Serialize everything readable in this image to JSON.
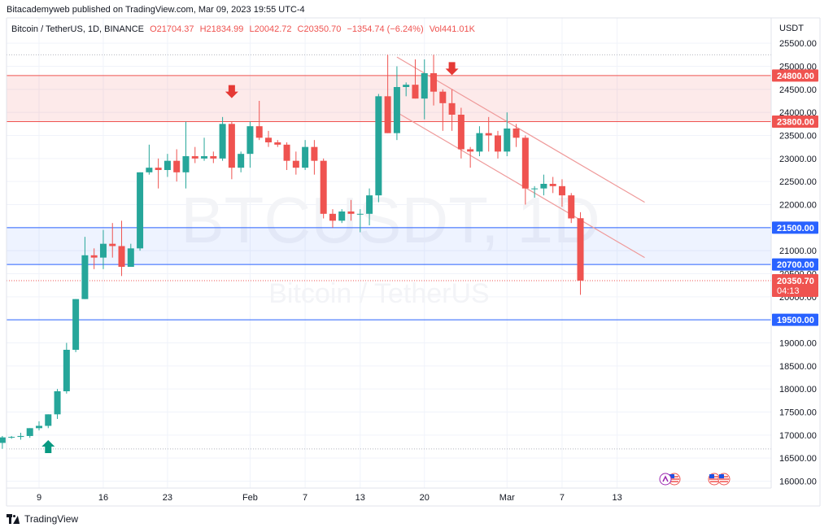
{
  "header": {
    "caption": "Bitacademyweb published on TradingView.com, Mar 09, 2023 19:55 UTC-4",
    "symbol": "Bitcoin / TetherUS, 1D, BINANCE",
    "open": "O21704.37",
    "high": "H21834.99",
    "low": "L20042.72",
    "close": "C20350.70",
    "change": "−1354.74 (−6.24%)",
    "volume": "Vol441.01K"
  },
  "watermark": {
    "symbol": "BTCUSDT, 1D",
    "name": "Bitcoin / TetherUS"
  },
  "footer": {
    "brand": "TradingView"
  },
  "colors": {
    "up": "#26a69a",
    "down": "#ef5350",
    "resistance": "#ef5350",
    "support": "#2962ff",
    "channel": "#ef9a9a"
  },
  "chart_data": {
    "type": "candlestick",
    "currency": "USDT",
    "ylim": [
      15850,
      26050
    ],
    "y_ticks": [
      16000,
      16500,
      17000,
      17500,
      18000,
      18500,
      19000,
      19500,
      20000,
      20500,
      21000,
      21500,
      22000,
      22500,
      23000,
      23500,
      24000,
      24500,
      25000,
      25500
    ],
    "x_ticks": [
      {
        "label": "9",
        "date": "2023-01-09"
      },
      {
        "label": "16",
        "date": "2023-01-16"
      },
      {
        "label": "23",
        "date": "2023-01-23"
      },
      {
        "label": "Feb",
        "date": "2023-02-01"
      },
      {
        "label": "7",
        "date": "2023-02-07"
      },
      {
        "label": "13",
        "date": "2023-02-13"
      },
      {
        "label": "20",
        "date": "2023-02-20"
      },
      {
        "label": "Mar",
        "date": "2023-03-01"
      },
      {
        "label": "7",
        "date": "2023-03-07"
      },
      {
        "label": "13",
        "date": "2023-03-13"
      }
    ],
    "candles": [
      {
        "date": "2023-01-05",
        "o": 16830,
        "h": 16980,
        "l": 16700,
        "c": 16950
      },
      {
        "date": "2023-01-06",
        "o": 16950,
        "h": 16980,
        "l": 16920,
        "c": 16960
      },
      {
        "date": "2023-01-07",
        "o": 16960,
        "h": 17050,
        "l": 16900,
        "c": 16980
      },
      {
        "date": "2023-01-08",
        "o": 16980,
        "h": 17150,
        "l": 16940,
        "c": 17150
      },
      {
        "date": "2023-01-09",
        "o": 17150,
        "h": 17300,
        "l": 17100,
        "c": 17200
      },
      {
        "date": "2023-01-10",
        "o": 17200,
        "h": 17450,
        "l": 17150,
        "c": 17450
      },
      {
        "date": "2023-01-11",
        "o": 17450,
        "h": 18000,
        "l": 17350,
        "c": 17950
      },
      {
        "date": "2023-01-12",
        "o": 17950,
        "h": 19000,
        "l": 17900,
        "c": 18850
      },
      {
        "date": "2023-01-13",
        "o": 18850,
        "h": 19950,
        "l": 18800,
        "c": 19950
      },
      {
        "date": "2023-01-14",
        "o": 19950,
        "h": 21300,
        "l": 19950,
        "c": 20900
      },
      {
        "date": "2023-01-15",
        "o": 20900,
        "h": 21050,
        "l": 20600,
        "c": 20850
      },
      {
        "date": "2023-01-16",
        "o": 20850,
        "h": 21450,
        "l": 20600,
        "c": 21150
      },
      {
        "date": "2023-01-17",
        "o": 21150,
        "h": 21600,
        "l": 20850,
        "c": 21100
      },
      {
        "date": "2023-01-18",
        "o": 21100,
        "h": 21650,
        "l": 20450,
        "c": 20650
      },
      {
        "date": "2023-01-19",
        "o": 20650,
        "h": 21150,
        "l": 20650,
        "c": 21050
      },
      {
        "date": "2023-01-20",
        "o": 21050,
        "h": 22700,
        "l": 21000,
        "c": 22700
      },
      {
        "date": "2023-01-21",
        "o": 22700,
        "h": 23300,
        "l": 22650,
        "c": 22800
      },
      {
        "date": "2023-01-22",
        "o": 22800,
        "h": 23000,
        "l": 22350,
        "c": 22750
      },
      {
        "date": "2023-01-23",
        "o": 22750,
        "h": 23100,
        "l": 22600,
        "c": 22950
      },
      {
        "date": "2023-01-24",
        "o": 22950,
        "h": 23200,
        "l": 22500,
        "c": 22700
      },
      {
        "date": "2023-01-25",
        "o": 22700,
        "h": 23800,
        "l": 22350,
        "c": 23050
      },
      {
        "date": "2023-01-26",
        "o": 23050,
        "h": 23250,
        "l": 22900,
        "c": 23000
      },
      {
        "date": "2023-01-27",
        "o": 23000,
        "h": 23450,
        "l": 22950,
        "c": 23050
      },
      {
        "date": "2023-01-28",
        "o": 23050,
        "h": 23150,
        "l": 22900,
        "c": 23000
      },
      {
        "date": "2023-01-29",
        "o": 23000,
        "h": 23900,
        "l": 22950,
        "c": 23750
      },
      {
        "date": "2023-01-30",
        "o": 23750,
        "h": 23800,
        "l": 22550,
        "c": 22800
      },
      {
        "date": "2023-01-31",
        "o": 22800,
        "h": 23150,
        "l": 22700,
        "c": 23100
      },
      {
        "date": "2023-02-01",
        "o": 23100,
        "h": 23800,
        "l": 22800,
        "c": 23700
      },
      {
        "date": "2023-02-02",
        "o": 23700,
        "h": 24250,
        "l": 23400,
        "c": 23450
      },
      {
        "date": "2023-02-03",
        "o": 23450,
        "h": 23600,
        "l": 23250,
        "c": 23350
      },
      {
        "date": "2023-02-04",
        "o": 23350,
        "h": 23400,
        "l": 23250,
        "c": 23300
      },
      {
        "date": "2023-02-05",
        "o": 23300,
        "h": 23350,
        "l": 22750,
        "c": 22950
      },
      {
        "date": "2023-02-06",
        "o": 22950,
        "h": 23150,
        "l": 22650,
        "c": 22800
      },
      {
        "date": "2023-02-07",
        "o": 22800,
        "h": 23400,
        "l": 22750,
        "c": 23250
      },
      {
        "date": "2023-02-08",
        "o": 23250,
        "h": 23400,
        "l": 22650,
        "c": 22950
      },
      {
        "date": "2023-02-09",
        "o": 22950,
        "h": 23000,
        "l": 21700,
        "c": 21800
      },
      {
        "date": "2023-02-10",
        "o": 21800,
        "h": 21900,
        "l": 21500,
        "c": 21650
      },
      {
        "date": "2023-02-11",
        "o": 21650,
        "h": 21900,
        "l": 21600,
        "c": 21850
      },
      {
        "date": "2023-02-12",
        "o": 21850,
        "h": 22100,
        "l": 21650,
        "c": 21800
      },
      {
        "date": "2023-02-13",
        "o": 21800,
        "h": 21900,
        "l": 21400,
        "c": 21800
      },
      {
        "date": "2023-02-14",
        "o": 21800,
        "h": 22350,
        "l": 21550,
        "c": 22200
      },
      {
        "date": "2023-02-15",
        "o": 22200,
        "h": 24400,
        "l": 22050,
        "c": 24350
      },
      {
        "date": "2023-02-16",
        "o": 24350,
        "h": 25250,
        "l": 23550,
        "c": 23550
      },
      {
        "date": "2023-02-17",
        "o": 23550,
        "h": 25000,
        "l": 23400,
        "c": 24550
      },
      {
        "date": "2023-02-18",
        "o": 24550,
        "h": 24650,
        "l": 24350,
        "c": 24600
      },
      {
        "date": "2023-02-19",
        "o": 24600,
        "h": 25150,
        "l": 24300,
        "c": 24300
      },
      {
        "date": "2023-02-20",
        "o": 24300,
        "h": 25150,
        "l": 23850,
        "c": 24850
      },
      {
        "date": "2023-02-21",
        "o": 24850,
        "h": 25250,
        "l": 24150,
        "c": 24450
      },
      {
        "date": "2023-02-22",
        "o": 24450,
        "h": 24500,
        "l": 23600,
        "c": 24200
      },
      {
        "date": "2023-02-23",
        "o": 24200,
        "h": 24500,
        "l": 23600,
        "c": 23950
      },
      {
        "date": "2023-02-24",
        "o": 23950,
        "h": 24100,
        "l": 23000,
        "c": 23200
      },
      {
        "date": "2023-02-25",
        "o": 23200,
        "h": 23250,
        "l": 22800,
        "c": 23150
      },
      {
        "date": "2023-02-26",
        "o": 23150,
        "h": 23700,
        "l": 23050,
        "c": 23550
      },
      {
        "date": "2023-02-27",
        "o": 23550,
        "h": 23900,
        "l": 23150,
        "c": 23500
      },
      {
        "date": "2023-02-28",
        "o": 23500,
        "h": 23600,
        "l": 23000,
        "c": 23150
      },
      {
        "date": "2023-03-01",
        "o": 23150,
        "h": 24000,
        "l": 23050,
        "c": 23650
      },
      {
        "date": "2023-03-02",
        "o": 23650,
        "h": 23750,
        "l": 23250,
        "c": 23450
      },
      {
        "date": "2023-03-03",
        "o": 23450,
        "h": 23500,
        "l": 22000,
        "c": 22350
      },
      {
        "date": "2023-03-04",
        "o": 22350,
        "h": 22400,
        "l": 22150,
        "c": 22350
      },
      {
        "date": "2023-03-05",
        "o": 22350,
        "h": 22650,
        "l": 22200,
        "c": 22450
      },
      {
        "date": "2023-03-06",
        "o": 22450,
        "h": 22600,
        "l": 22250,
        "c": 22400
      },
      {
        "date": "2023-03-07",
        "o": 22400,
        "h": 22550,
        "l": 21950,
        "c": 22200
      },
      {
        "date": "2023-03-08",
        "o": 22200,
        "h": 22250,
        "l": 21600,
        "c": 21700
      },
      {
        "date": "2023-03-09",
        "o": 21704.37,
        "h": 21834.99,
        "l": 20042.72,
        "c": 20350.7
      }
    ],
    "levels": [
      {
        "name": "resistance-top",
        "value": 24800,
        "label": "24800.00",
        "kind": "resistance"
      },
      {
        "name": "resistance-bottom",
        "value": 23800,
        "label": "23800.00",
        "kind": "resistance"
      },
      {
        "name": "support-top",
        "value": 21500,
        "label": "21500.00",
        "kind": "support"
      },
      {
        "name": "support-bottom",
        "value": 20700,
        "label": "20700.00",
        "kind": "support"
      },
      {
        "name": "support-low",
        "value": 19500,
        "label": "19500.00",
        "kind": "support"
      }
    ],
    "zones": [
      {
        "name": "resistance-zone",
        "from": 23800,
        "to": 24800,
        "kind": "resistance"
      },
      {
        "name": "support-zone",
        "from": 20700,
        "to": 21500,
        "kind": "support"
      }
    ],
    "dotted_levels": [
      25250,
      16700
    ],
    "last_price": {
      "value": 20350.7,
      "label": "20350.70",
      "countdown": "04:13"
    },
    "channel": [
      {
        "name": "channel-upper",
        "start": {
          "date": "2023-02-17",
          "value": 25200
        },
        "end": {
          "date": "2023-03-16",
          "value": 22050
        }
      },
      {
        "name": "channel-lower",
        "start": {
          "date": "2023-02-17",
          "value": 24000
        },
        "end": {
          "date": "2023-03-16",
          "value": 20850
        }
      }
    ],
    "arrows": [
      {
        "name": "down-arrow-1",
        "date": "2023-01-30",
        "value": 24450,
        "direction": "down"
      },
      {
        "name": "down-arrow-2",
        "date": "2023-02-23",
        "value": 24950,
        "direction": "down"
      },
      {
        "name": "up-arrow-1",
        "date": "2023-01-10",
        "value": 16750,
        "direction": "up"
      }
    ],
    "grid": true
  }
}
